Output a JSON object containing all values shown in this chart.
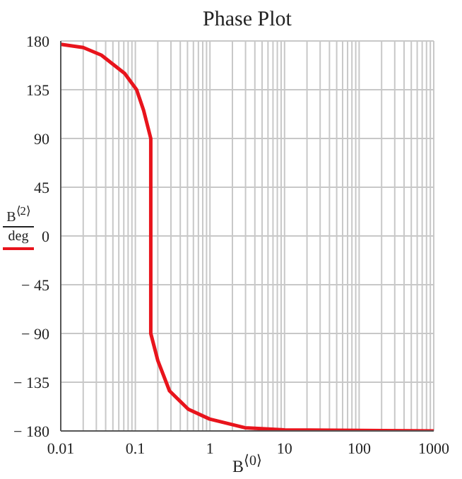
{
  "chart_data": {
    "type": "line",
    "title": "Phase Plot",
    "xlabel": "B$^{⟨0⟩}$",
    "ylabel": "B$^{⟨2⟩}$ deg",
    "log": "x",
    "grid": true,
    "marker": "none",
    "line_style": "solid",
    "xlim": [
      0.01,
      1000
    ],
    "xticks": [
      0.01,
      {
        "value": 0.02,
        "label": null
      },
      {
        "value": 0.03,
        "label": null
      },
      {
        "value": 0.04,
        "label": null
      },
      {
        "value": 0.05,
        "label": null
      },
      {
        "value": 0.06,
        "label": null
      },
      {
        "value": 0.07,
        "label": null
      },
      {
        "value": 0.08,
        "label": null
      },
      {
        "value": 0.09,
        "label": null
      },
      0.1,
      {
        "value": 0.2,
        "label": null
      },
      {
        "value": 0.3,
        "label": null
      },
      {
        "value": 0.4,
        "label": null
      },
      {
        "value": 0.5,
        "label": null
      },
      {
        "value": 0.6,
        "label": null
      },
      {
        "value": 0.7,
        "label": null
      },
      {
        "value": 0.8,
        "label": null
      },
      {
        "value": 0.9,
        "label": null
      },
      1,
      {
        "value": 2,
        "label": null
      },
      {
        "value": 3,
        "label": null
      },
      {
        "value": 4,
        "label": null
      },
      {
        "value": 5,
        "label": null
      },
      {
        "value": 6,
        "label": null
      },
      {
        "value": 7,
        "label": null
      },
      {
        "value": 8,
        "label": null
      },
      {
        "value": 9,
        "label": null
      },
      10,
      {
        "value": 20,
        "label": null
      },
      {
        "value": 30,
        "label": null
      },
      {
        "value": 40,
        "label": null
      },
      {
        "value": 50,
        "label": null
      },
      {
        "value": 60,
        "label": null
      },
      {
        "value": 70,
        "label": null
      },
      {
        "value": 80,
        "label": null
      },
      {
        "value": 90,
        "label": null
      },
      100,
      {
        "value": 200,
        "label": null
      },
      {
        "value": 300,
        "label": null
      },
      {
        "value": 400,
        "label": null
      },
      {
        "value": 500,
        "label": null
      },
      {
        "value": 600,
        "label": null
      },
      {
        "value": 700,
        "label": null
      },
      {
        "value": 800,
        "label": null
      },
      {
        "value": 900,
        "label": null
      },
      1000
    ],
    "ylim": [
      -180,
      180
    ],
    "yticks": [
      {
        "value": -180,
        "label": "− 180"
      },
      {
        "value": -135,
        "label": "− 135"
      },
      {
        "value": -90,
        "label": "− 90"
      },
      {
        "value": -45,
        "label": "− 45"
      },
      0,
      45,
      90,
      135,
      180
    ],
    "series": [
      {
        "color": "#e8141c",
        "x": [
          0.01,
          0.02,
          0.035,
          0.072,
          0.104,
          0.129,
          0.161,
          0.161,
          0.2,
          0.287,
          0.513,
          0.99,
          2.94,
          10,
          1000
        ],
        "values": [
          177,
          174,
          167,
          150,
          135,
          116,
          90,
          -90,
          -115,
          -143,
          -160,
          -169,
          -177,
          -179,
          -180
        ]
      }
    ]
  }
}
